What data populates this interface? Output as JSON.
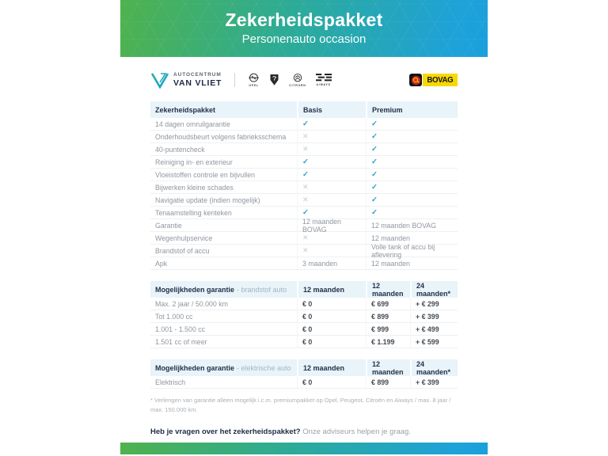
{
  "colors": {
    "gradient_start": "#4fb24d",
    "gradient_mid": "#2dab96",
    "gradient_end": "#1aa0dc",
    "check": "#2d9fcf",
    "cross": "#c7ccd2",
    "table_header_bg": "#e8f4f9",
    "dark_text": "#233049",
    "bovag_yellow": "#f8d804",
    "bovag_red": "#d3281f"
  },
  "header": {
    "title": "Zekerheidspakket",
    "subtitle": "Personenauto occasion"
  },
  "logos": {
    "dealer_top": "AUTOCENTRUM",
    "dealer_name": "VAN VLIET",
    "brands": [
      {
        "name": "Opel",
        "label": "OPEL"
      },
      {
        "name": "Peugeot",
        "label": ""
      },
      {
        "name": "Citroën",
        "label": "CITROËN"
      },
      {
        "name": "Aiways",
        "label": "AIWAYS"
      }
    ],
    "bovag_label": "BOVAG"
  },
  "package_table": {
    "headers": [
      "Zekerheidspakket",
      "Basis",
      "Premium"
    ],
    "rows": [
      [
        "14 dagen omruilgarantie",
        "check",
        "check"
      ],
      [
        "Onderhoudsbeurt volgens fabrieksschema",
        "cross",
        "check"
      ],
      [
        "40-puntencheck",
        "cross",
        "check"
      ],
      [
        "Reiniging in- en exterieur",
        "check",
        "check"
      ],
      [
        "Vloeistoffen controle en bijvullen",
        "check",
        "check"
      ],
      [
        "Bijwerken kleine schades",
        "cross",
        "check"
      ],
      [
        "Navigatie update (indien mogelijk)",
        "cross",
        "check"
      ],
      [
        "Tenaamstelling kenteken",
        "check",
        "check"
      ],
      [
        "Garantie",
        "12 maanden BOVAG",
        "12 maanden BOVAG"
      ],
      [
        "Wegenhulpservice",
        "cross",
        "12 maanden"
      ],
      [
        "Brandstof of accu",
        "cross",
        "Volle tank of accu bij aflevering"
      ],
      [
        "Apk",
        "3 maanden",
        "12 maanden"
      ]
    ]
  },
  "gar_brandstof": {
    "title_bold": "Mogelijkheden garantie",
    "title_light": "- brandstof auto",
    "col_headers": [
      "12 maanden",
      "12 maanden",
      "24 maanden*"
    ],
    "rows": [
      [
        "Max. 2 jaar / 50.000 km",
        "€ 0",
        "€ 699",
        "+ € 299"
      ],
      [
        "Tot 1.000 cc",
        "€ 0",
        "€ 899",
        "+ € 399"
      ],
      [
        "1.001 - 1.500 cc",
        "€ 0",
        "€ 999",
        "+ € 499"
      ],
      [
        "1.501 cc of meer",
        "€ 0",
        "€ 1.199",
        "+ € 599"
      ]
    ]
  },
  "gar_elektrisch": {
    "title_bold": "Mogelijkheden garantie",
    "title_light": "- elektrische auto",
    "col_headers": [
      "12 maanden",
      "12 maanden",
      "24 maanden*"
    ],
    "rows": [
      [
        "Elektrisch",
        "€ 0",
        "€ 899",
        "+ € 399"
      ]
    ]
  },
  "footnote": "* Verlengen van garantie alleen mogelijk i.c.m. premiumpakket op Opel, Peugeot, Citroën en Aiways / max. 8 jaar / max. 150.000 km.",
  "question": {
    "bold": "Heb je vragen over het zekerheidspakket?",
    "normal": "Onze adviseurs helpen je graag."
  }
}
